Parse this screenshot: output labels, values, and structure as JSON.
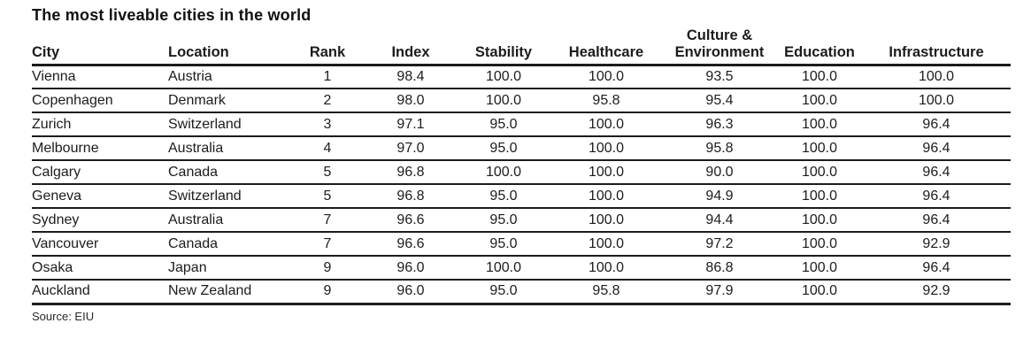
{
  "title": "The most liveable cities in the world",
  "source_note": "Source: EIU",
  "colors": {
    "background": "#ffffff",
    "text": "#1c1c1c",
    "rule": "#1c1c1c"
  },
  "table": {
    "columns": [
      {
        "id": "city",
        "label": "City",
        "align": "left"
      },
      {
        "id": "location",
        "label": "Location",
        "align": "left"
      },
      {
        "id": "rank",
        "label": "Rank",
        "align": "center"
      },
      {
        "id": "index",
        "label": "Index",
        "align": "center"
      },
      {
        "id": "stability",
        "label": "Stability",
        "align": "center"
      },
      {
        "id": "healthcare",
        "label": "Healthcare",
        "align": "center"
      },
      {
        "id": "culture-environment",
        "label": "Culture &\nEnvironment",
        "align": "center"
      },
      {
        "id": "education",
        "label": "Education",
        "align": "center"
      },
      {
        "id": "infrastructure",
        "label": "Infrastructure",
        "align": "center"
      }
    ]
  },
  "chart_data": {
    "type": "table",
    "title": "The most liveable cities in the world",
    "columns": [
      "City",
      "Location",
      "Rank",
      "Index",
      "Stability",
      "Healthcare",
      "Culture & Environment",
      "Education",
      "Infrastructure"
    ],
    "rows": [
      [
        "Vienna",
        "Austria",
        "1",
        "98.4",
        "100.0",
        "100.0",
        "93.5",
        "100.0",
        "100.0"
      ],
      [
        "Copenhagen",
        "Denmark",
        "2",
        "98.0",
        "100.0",
        "95.8",
        "95.4",
        "100.0",
        "100.0"
      ],
      [
        "Zurich",
        "Switzerland",
        "3",
        "97.1",
        "95.0",
        "100.0",
        "96.3",
        "100.0",
        "96.4"
      ],
      [
        "Melbourne",
        "Australia",
        "4",
        "97.0",
        "95.0",
        "100.0",
        "95.8",
        "100.0",
        "96.4"
      ],
      [
        "Calgary",
        "Canada",
        "5",
        "96.8",
        "100.0",
        "100.0",
        "90.0",
        "100.0",
        "96.4"
      ],
      [
        "Geneva",
        "Switzerland",
        "5",
        "96.8",
        "95.0",
        "100.0",
        "94.9",
        "100.0",
        "96.4"
      ],
      [
        "Sydney",
        "Australia",
        "7",
        "96.6",
        "95.0",
        "100.0",
        "94.4",
        "100.0",
        "96.4"
      ],
      [
        "Vancouver",
        "Canada",
        "7",
        "96.6",
        "95.0",
        "100.0",
        "97.2",
        "100.0",
        "92.9"
      ],
      [
        "Osaka",
        "Japan",
        "9",
        "96.0",
        "100.0",
        "100.0",
        "86.8",
        "100.0",
        "96.4"
      ],
      [
        "Auckland",
        "New Zealand",
        "9",
        "96.0",
        "95.0",
        "95.8",
        "97.9",
        "100.0",
        "92.9"
      ]
    ],
    "source": "EIU"
  }
}
